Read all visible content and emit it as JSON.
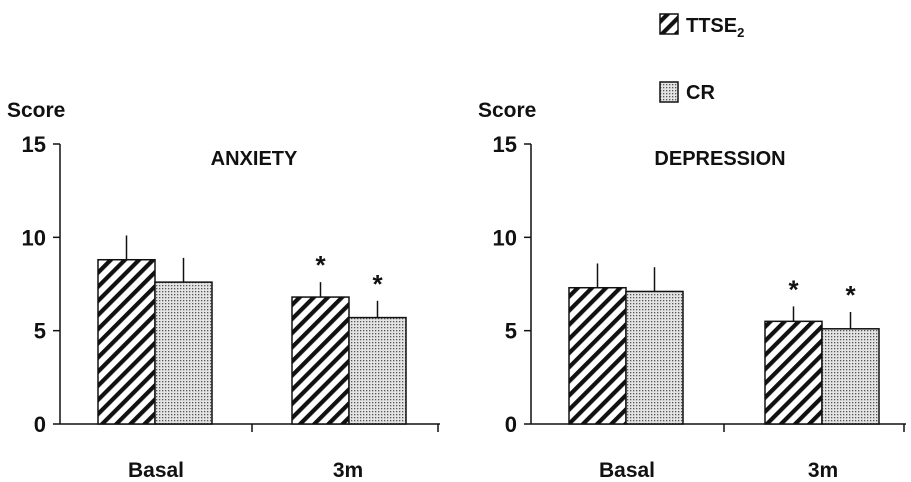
{
  "legend": {
    "items": [
      {
        "label": "TTSE",
        "subscript": "2",
        "pattern": "hatch"
      },
      {
        "label": "CR",
        "subscript": "",
        "pattern": "dots"
      }
    ]
  },
  "chart_data": [
    {
      "type": "bar",
      "title": "ANXIETY",
      "ylabel": "Score",
      "ylim": [
        0,
        15
      ],
      "yticks": [
        "0",
        "5",
        "10",
        "15"
      ],
      "categories": [
        "Basal",
        "3m"
      ],
      "series": [
        {
          "name": "TTSE2",
          "values": [
            8.8,
            6.8
          ],
          "errors": [
            1.3,
            0.8
          ],
          "significant": [
            false,
            true
          ]
        },
        {
          "name": "CR",
          "values": [
            7.6,
            5.7
          ],
          "errors": [
            1.3,
            0.9
          ],
          "significant": [
            false,
            true
          ]
        }
      ],
      "significance_marker": "*",
      "grid": false
    },
    {
      "type": "bar",
      "title": "DEPRESSION",
      "ylabel": "Score",
      "ylim": [
        0,
        15
      ],
      "yticks": [
        "0",
        "5",
        "10",
        "15"
      ],
      "categories": [
        "Basal",
        "3m"
      ],
      "series": [
        {
          "name": "TTSE2",
          "values": [
            7.3,
            5.5
          ],
          "errors": [
            1.3,
            0.8
          ],
          "significant": [
            false,
            true
          ]
        },
        {
          "name": "CR",
          "values": [
            7.1,
            5.1
          ],
          "errors": [
            1.3,
            0.9
          ],
          "significant": [
            false,
            true
          ]
        }
      ],
      "significance_marker": "*",
      "grid": false
    }
  ]
}
